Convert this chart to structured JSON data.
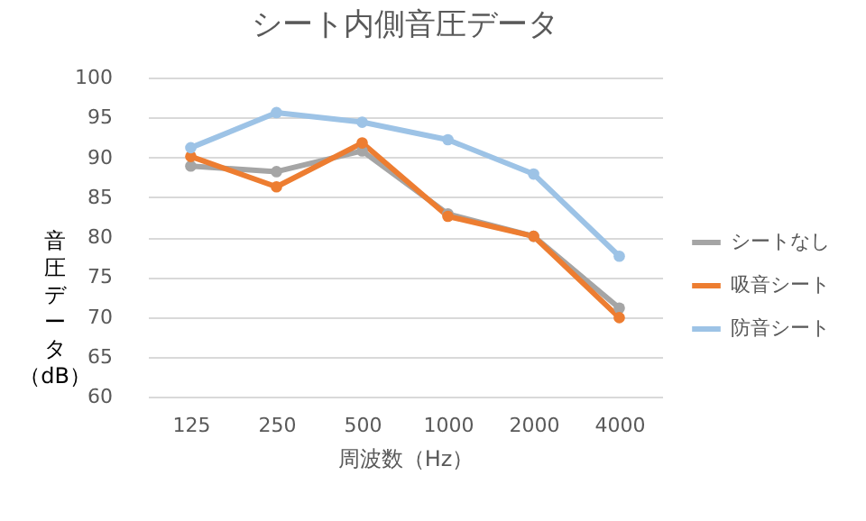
{
  "chart_data": {
    "type": "line",
    "title": "シート内側音圧データ",
    "xlabel": "周波数（Hz）",
    "ylabel": "音圧データ（dB）",
    "categories": [
      "125",
      "250",
      "500",
      "1000",
      "2000",
      "4000"
    ],
    "series": [
      {
        "name": "シートなし",
        "color": "#a5a5a5",
        "values": [
          88.9,
          88.2,
          90.8,
          82.9,
          80.1,
          71.1
        ]
      },
      {
        "name": "吸音シート",
        "color": "#ed7d31",
        "values": [
          90.1,
          86.3,
          91.8,
          82.6,
          80.1,
          69.9
        ]
      },
      {
        "name": "防音シート",
        "color": "#9dc3e6",
        "values": [
          91.2,
          95.6,
          94.4,
          92.2,
          87.9,
          77.6
        ]
      }
    ],
    "ylim": [
      60,
      100
    ],
    "yticks": [
      60,
      65,
      70,
      75,
      80,
      85,
      90,
      95,
      100
    ],
    "grid": "y",
    "legend": "right",
    "marker": "circle",
    "line_style": "solid"
  }
}
